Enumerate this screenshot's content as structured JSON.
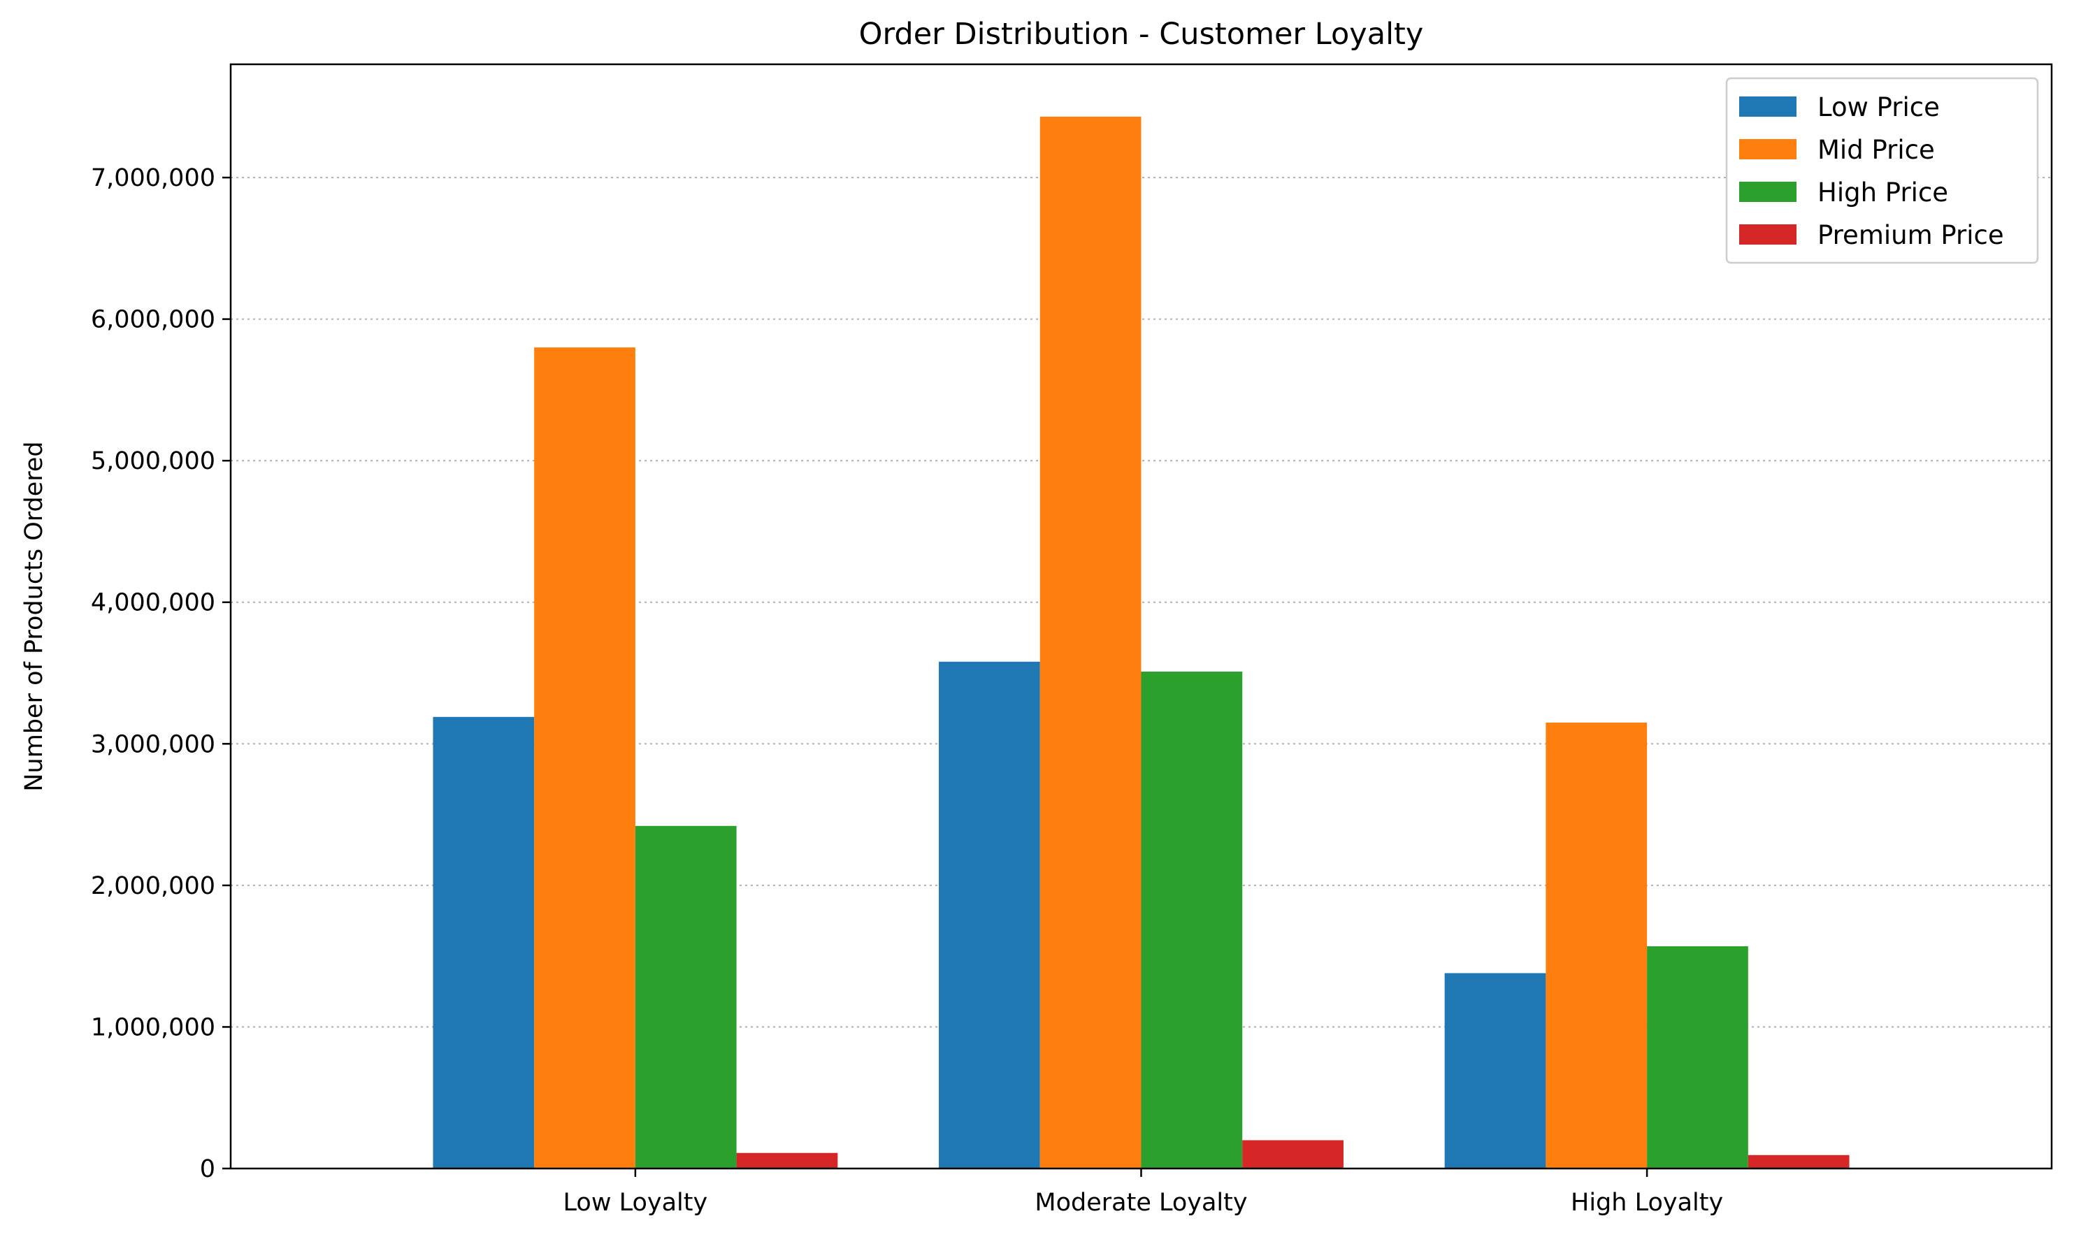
{
  "chart_data": {
    "type": "bar",
    "title": "Order Distribution - Customer Loyalty",
    "xlabel": "",
    "ylabel": "Number of Products Ordered",
    "categories": [
      "Low Loyalty",
      "Moderate Loyalty",
      "High Loyalty"
    ],
    "series": [
      {
        "name": "Low Price",
        "color": "#1f77b4",
        "values": [
          3190000,
          3580000,
          1380000
        ]
      },
      {
        "name": "Mid Price",
        "color": "#ff7f0e",
        "values": [
          5800000,
          7430000,
          3150000
        ]
      },
      {
        "name": "High Price",
        "color": "#2ca02c",
        "values": [
          2420000,
          3510000,
          1570000
        ]
      },
      {
        "name": "Premium Price",
        "color": "#d62728",
        "values": [
          110000,
          200000,
          95000
        ]
      }
    ],
    "ylim": [
      0,
      7800000
    ],
    "yticks": [
      0,
      1000000,
      2000000,
      3000000,
      4000000,
      5000000,
      6000000,
      7000000
    ],
    "ytick_labels": [
      "0",
      "1,000,000",
      "2,000,000",
      "3,000,000",
      "4,000,000",
      "5,000,000",
      "6,000,000",
      "7,000,000"
    ],
    "grid": "y, dotted",
    "legend_position": "top-right"
  }
}
